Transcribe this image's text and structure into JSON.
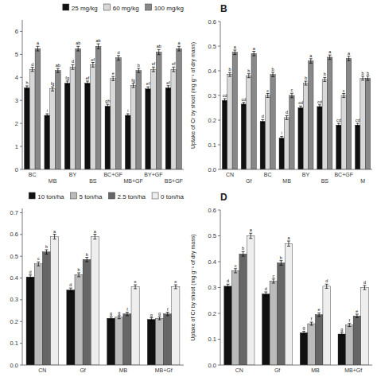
{
  "chart_data": [
    {
      "type": "bar",
      "categories": [
        "BC",
        "MB",
        "BY",
        "BS",
        "BC+GF",
        "MB+GF",
        "BY+GF",
        "BS+GF"
      ],
      "series": [
        {
          "name": "25 mg/kg",
          "color": "#111111",
          "values": [
            3.55,
            2.35,
            3.75,
            3.75,
            2.75,
            2.35,
            3.5,
            3.55
          ],
          "errors": [
            0.08,
            0.07,
            0.09,
            0.09,
            0.08,
            0.07,
            0.09,
            0.09
          ],
          "letters": [
            "h",
            "i",
            "fg",
            "ef",
            "gh",
            "i",
            "ef",
            "ef"
          ]
        },
        {
          "name": "60 mg/kg",
          "color": "#d8d8d8",
          "values": [
            4.35,
            3.5,
            4.45,
            4.55,
            3.95,
            3.65,
            4.35,
            4.35
          ],
          "errors": [
            0.09,
            0.09,
            0.1,
            0.1,
            0.09,
            0.09,
            0.1,
            0.1
          ],
          "letters": [
            "d",
            "fg",
            "d",
            "ef",
            "e",
            "fg",
            "ef",
            "ef"
          ]
        },
        {
          "name": "100 mg/kg",
          "color": "#888888",
          "values": [
            5.25,
            4.3,
            5.25,
            5.35,
            4.85,
            4.3,
            5.1,
            5.25
          ],
          "errors": [
            0.1,
            0.09,
            0.1,
            0.11,
            0.1,
            0.09,
            0.11,
            0.1
          ],
          "letters": [
            "a",
            "ab",
            "ab",
            "ab",
            "d",
            "b",
            "ab",
            "a"
          ]
        }
      ],
      "ylim": [
        0,
        6.5
      ],
      "yticks": [
        0,
        1,
        2,
        3,
        4,
        5,
        6
      ],
      "legend": "upper right"
    },
    {
      "type": "bar",
      "title": "B",
      "ylabel": "Uptake of Cr by shoot (mg g⁻¹ of dry mass)",
      "categories": [
        "CN",
        "Gf",
        "BC",
        "MB",
        "BY",
        "BS",
        "BC+GF",
        "M"
      ],
      "series": [
        {
          "color": "#111111",
          "values": [
            0.28,
            0.265,
            0.195,
            0.127,
            0.25,
            0.255,
            0.18,
            0.18
          ],
          "errors": [
            0.007,
            0.007,
            0.007,
            0.007,
            0.007,
            0.007,
            0.007,
            0.007
          ],
          "letters": [
            "cd",
            "cd",
            "d",
            "i",
            "cd",
            "cd",
            "cd",
            "cd"
          ]
        },
        {
          "color": "#d8d8d8",
          "values": [
            0.385,
            0.38,
            0.3,
            0.21,
            0.35,
            0.365,
            0.3,
            0.37
          ],
          "errors": [
            0.008,
            0.008,
            0.008,
            0.008,
            0.008,
            0.008,
            0.008,
            0.008
          ],
          "letters": [
            "b",
            "b",
            "c",
            "d",
            "b",
            "b",
            "c",
            "b"
          ]
        },
        {
          "color": "#888888",
          "values": [
            0.475,
            0.47,
            0.385,
            0.3,
            0.44,
            0.455,
            0.45,
            0.37
          ],
          "errors": [
            0.009,
            0.009,
            0.009,
            0.009,
            0.009,
            0.009,
            0.009,
            0.009
          ],
          "letters": [
            "a",
            "a",
            "b",
            "c",
            "a",
            "a",
            "a",
            "b"
          ]
        }
      ],
      "ylim": [
        0.0,
        0.6
      ],
      "yticks": [
        {
          "value": 0,
          "label": "0.0"
        },
        0.1,
        0.2,
        0.3,
        0.4,
        0.5,
        0.6
      ]
    },
    {
      "type": "bar",
      "categories": [
        "CN",
        "Gf",
        "MB",
        "MB+Gf"
      ],
      "series": [
        {
          "name": "10 ton/ha",
          "color": "#111111",
          "values": [
            0.405,
            0.345,
            0.215,
            0.21
          ],
          "errors": [
            0.009,
            0.009,
            0.007,
            0.007
          ],
          "letters": [
            "d",
            "d",
            "g",
            "g"
          ]
        },
        {
          "name": "5 ton/ha",
          "color": "#bbbbbb",
          "values": [
            0.465,
            0.415,
            0.22,
            0.215
          ],
          "errors": [
            0.009,
            0.009,
            0.007,
            0.007
          ],
          "letters": [
            "c",
            "b",
            "g",
            "g"
          ]
        },
        {
          "name": "2.5 ton/ha",
          "color": "#666666",
          "values": [
            0.52,
            0.485,
            0.235,
            0.235
          ],
          "errors": [
            0.01,
            0.01,
            0.008,
            0.008
          ],
          "letters": [
            "b",
            "b",
            "f",
            "f"
          ]
        },
        {
          "name": "0 ton/ha",
          "color": "#eeeeee",
          "values": [
            0.59,
            0.59,
            0.36,
            0.36
          ],
          "errors": [
            0.011,
            0.011,
            0.009,
            0.009
          ],
          "letters": [
            "a",
            "a",
            "e",
            "e"
          ]
        }
      ],
      "ylim": [
        0.0,
        0.72
      ],
      "yticks": [
        {
          "value": 0,
          "label": "0.0"
        },
        0.1,
        0.2,
        0.3,
        0.4,
        0.5,
        0.6,
        0.7
      ],
      "legend": "upper right"
    },
    {
      "type": "bar",
      "title": "D",
      "ylabel": "Uptake of Cr by shoot (mg g⁻¹ of dry mass)",
      "categories": [
        "CN",
        "Gf",
        "MB",
        "MB+Gf"
      ],
      "series": [
        {
          "color": "#111111",
          "values": [
            0.305,
            0.275,
            0.125,
            0.12
          ],
          "errors": [
            0.008,
            0.008,
            0.006,
            0.006
          ],
          "letters": [
            "d",
            "d",
            "g",
            "g"
          ]
        },
        {
          "color": "#bbbbbb",
          "values": [
            0.365,
            0.325,
            0.16,
            0.155
          ],
          "errors": [
            0.008,
            0.008,
            0.006,
            0.006
          ],
          "letters": [
            "c",
            "c",
            "f",
            "f"
          ]
        },
        {
          "color": "#666666",
          "values": [
            0.43,
            0.395,
            0.195,
            0.19
          ],
          "errors": [
            0.009,
            0.009,
            0.007,
            0.007
          ],
          "letters": [
            "b",
            "b",
            "e",
            "e"
          ]
        },
        {
          "color": "#eeeeee",
          "values": [
            0.5,
            0.47,
            0.305,
            0.3
          ],
          "errors": [
            0.01,
            0.01,
            0.008,
            0.008
          ],
          "letters": [
            "a",
            "a",
            "d",
            "d"
          ]
        }
      ],
      "ylim": [
        0.0,
        0.6
      ],
      "yticks": [
        {
          "value": 0,
          "label": "0.0"
        },
        0.1,
        0.2,
        0.3,
        0.4,
        0.5,
        0.6
      ]
    }
  ]
}
